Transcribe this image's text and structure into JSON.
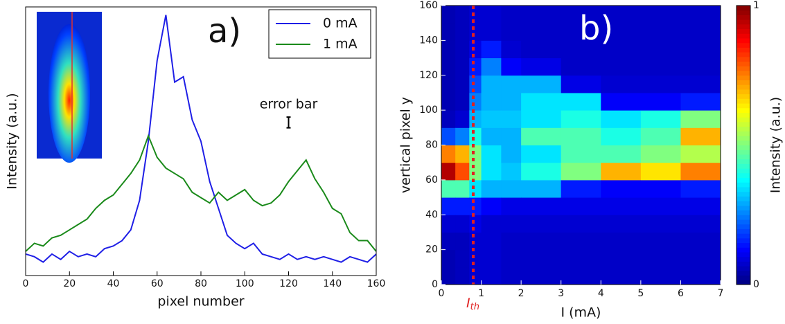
{
  "chart_data": [
    {
      "type": "line",
      "annotation": "a)",
      "x_label": "pixel number",
      "y_label": "Intensity (a.u.)",
      "xlim": [
        0,
        160
      ],
      "xticks": [
        0,
        20,
        40,
        60,
        80,
        100,
        120,
        140,
        160
      ],
      "ylim": [
        0,
        1
      ],
      "legend": "upper right",
      "x": [
        0,
        4,
        8,
        12,
        16,
        20,
        24,
        28,
        32,
        36,
        40,
        44,
        48,
        52,
        56,
        60,
        64,
        68,
        72,
        76,
        80,
        84,
        88,
        92,
        96,
        100,
        104,
        108,
        112,
        116,
        120,
        124,
        128,
        132,
        136,
        140,
        144,
        148,
        152,
        156,
        160
      ],
      "series": [
        {
          "name": "0 mA",
          "color": "#1f1fe6",
          "values": [
            0.08,
            0.07,
            0.05,
            0.08,
            0.06,
            0.09,
            0.07,
            0.08,
            0.07,
            0.1,
            0.11,
            0.13,
            0.17,
            0.28,
            0.5,
            0.8,
            0.97,
            0.72,
            0.74,
            0.58,
            0.5,
            0.35,
            0.25,
            0.15,
            0.12,
            0.1,
            0.12,
            0.08,
            0.07,
            0.06,
            0.08,
            0.06,
            0.07,
            0.06,
            0.07,
            0.06,
            0.05,
            0.07,
            0.06,
            0.05,
            0.08
          ]
        },
        {
          "name": "1 mA",
          "color": "#1a8a1a",
          "values": [
            0.09,
            0.12,
            0.11,
            0.14,
            0.15,
            0.17,
            0.19,
            0.21,
            0.25,
            0.28,
            0.3,
            0.34,
            0.38,
            0.43,
            0.52,
            0.44,
            0.4,
            0.38,
            0.36,
            0.31,
            0.29,
            0.27,
            0.31,
            0.28,
            0.3,
            0.32,
            0.28,
            0.26,
            0.27,
            0.3,
            0.35,
            0.39,
            0.43,
            0.36,
            0.31,
            0.25,
            0.23,
            0.16,
            0.13,
            0.13,
            0.09
          ]
        }
      ],
      "error_bar": {
        "label": "error bar",
        "x": 120,
        "y": 0.57,
        "error": 0.02
      }
    },
    {
      "type": "heatmap",
      "annotation": "b)",
      "x_label": "I (mA)",
      "y_label": "vertical pixel y",
      "xlim": [
        0,
        7
      ],
      "xticks": [
        0,
        1,
        2,
        3,
        4,
        5,
        6,
        7
      ],
      "ylim": [
        0,
        160
      ],
      "yticks": [
        0,
        20,
        40,
        60,
        80,
        100,
        120,
        140,
        160
      ],
      "colormap": "jet",
      "colorbar_label": "Intensity (a.u.)",
      "zlim": [
        0,
        1
      ],
      "zticks": [
        0,
        1
      ],
      "threshold": {
        "value": 0.8,
        "label": "I",
        "subscript": "th",
        "color": "#e02020"
      },
      "x_bins": [
        0,
        0.35,
        0.7,
        1,
        1.5,
        2,
        3,
        4,
        5,
        6,
        7
      ],
      "y_bins": [
        0,
        10,
        20,
        30,
        40,
        50,
        60,
        70,
        80,
        90,
        100,
        110,
        120,
        130,
        140,
        150,
        160
      ],
      "values": [
        [
          0.05,
          0.05,
          0.06,
          0.08,
          0.15,
          0.45,
          0.95,
          0.75,
          0.2,
          0.06,
          0.05,
          0.05,
          0.05,
          0.05,
          0.05,
          0.05
        ],
        [
          0.06,
          0.06,
          0.06,
          0.08,
          0.15,
          0.45,
          0.8,
          0.7,
          0.25,
          0.08,
          0.06,
          0.06,
          0.06,
          0.06,
          0.06,
          0.06
        ],
        [
          0.08,
          0.08,
          0.08,
          0.1,
          0.15,
          0.35,
          0.5,
          0.5,
          0.4,
          0.3,
          0.25,
          0.2,
          0.15,
          0.1,
          0.08,
          0.08
        ],
        [
          0.08,
          0.08,
          0.08,
          0.08,
          0.12,
          0.3,
          0.35,
          0.35,
          0.3,
          0.32,
          0.3,
          0.3,
          0.25,
          0.15,
          0.08,
          0.08
        ],
        [
          0.07,
          0.07,
          0.07,
          0.08,
          0.1,
          0.3,
          0.32,
          0.3,
          0.3,
          0.32,
          0.3,
          0.3,
          0.12,
          0.08,
          0.07,
          0.07
        ],
        [
          0.07,
          0.07,
          0.07,
          0.08,
          0.1,
          0.3,
          0.4,
          0.35,
          0.45,
          0.35,
          0.35,
          0.3,
          0.1,
          0.07,
          0.07,
          0.07
        ],
        [
          0.07,
          0.07,
          0.07,
          0.08,
          0.1,
          0.15,
          0.5,
          0.45,
          0.45,
          0.4,
          0.35,
          0.1,
          0.07,
          0.07,
          0.07,
          0.07
        ],
        [
          0.07,
          0.07,
          0.07,
          0.08,
          0.1,
          0.12,
          0.7,
          0.45,
          0.4,
          0.35,
          0.12,
          0.08,
          0.07,
          0.07,
          0.07,
          0.07
        ],
        [
          0.07,
          0.07,
          0.07,
          0.08,
          0.1,
          0.12,
          0.65,
          0.5,
          0.45,
          0.4,
          0.12,
          0.08,
          0.07,
          0.07,
          0.07,
          0.07
        ],
        [
          0.07,
          0.07,
          0.07,
          0.08,
          0.1,
          0.15,
          0.75,
          0.55,
          0.7,
          0.5,
          0.15,
          0.08,
          0.07,
          0.07,
          0.07,
          0.07
        ]
      ]
    }
  ]
}
